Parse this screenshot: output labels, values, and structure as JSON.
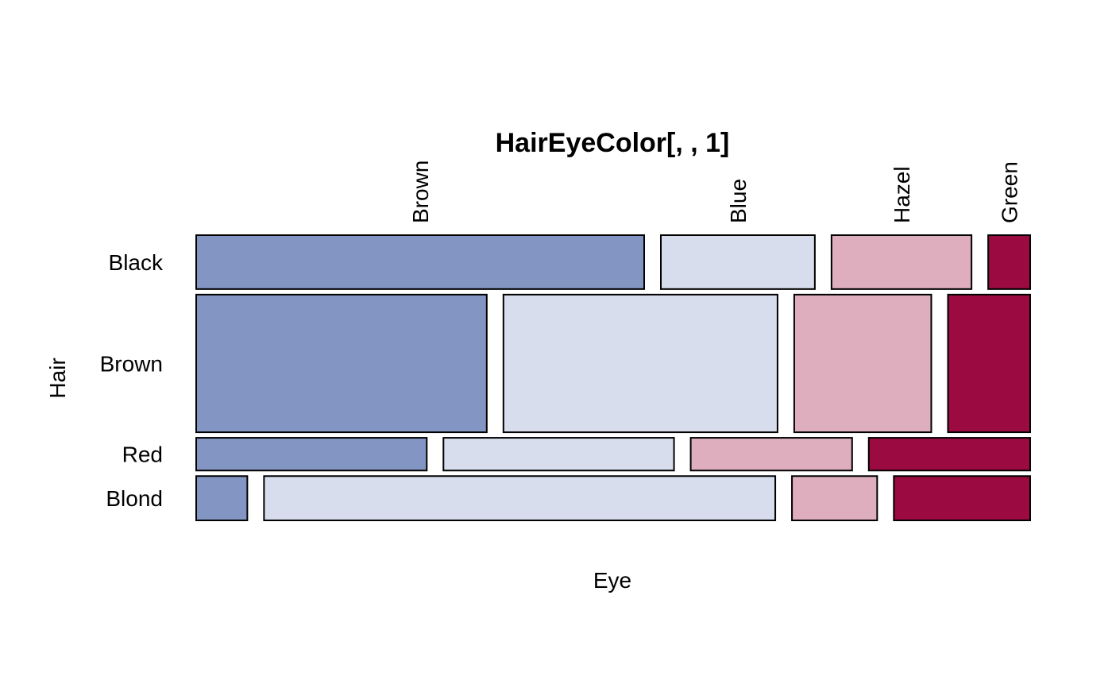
{
  "chart_data": {
    "type": "mosaic",
    "title": "HairEyeColor[, , 1]",
    "xlabel": "Eye",
    "ylabel": "Hair",
    "rows": [
      "Black",
      "Brown",
      "Red",
      "Blond"
    ],
    "cols": [
      "Brown",
      "Blue",
      "Hazel",
      "Green"
    ],
    "counts": [
      [
        32,
        11,
        10,
        3
      ],
      [
        53,
        50,
        25,
        15
      ],
      [
        10,
        10,
        7,
        7
      ],
      [
        3,
        30,
        5,
        8
      ]
    ],
    "colors": [
      "#8396C3",
      "#D7DDEC",
      "#DEAEBE",
      "#9B0A41"
    ]
  }
}
